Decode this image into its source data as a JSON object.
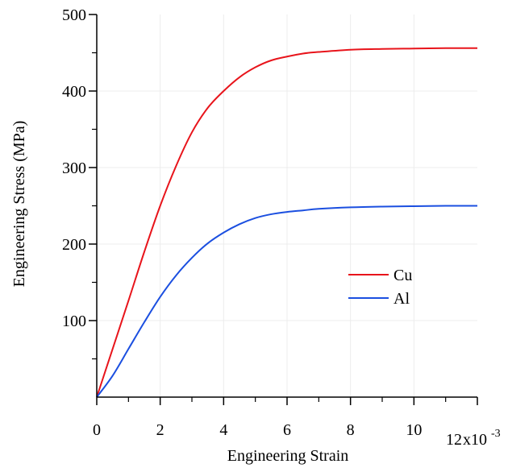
{
  "chart_data": {
    "type": "line",
    "xlabel": "Engineering Strain",
    "ylabel": "Engineering Stress (MPa)",
    "x_scale_note": "x10",
    "x_scale_exp": "-3",
    "xlim": [
      0,
      12
    ],
    "ylim": [
      0,
      500
    ],
    "x_ticks": [
      0,
      2,
      4,
      6,
      8,
      10,
      12
    ],
    "x_tick_labels": [
      "0",
      "2",
      "4",
      "6",
      "8",
      "10",
      "12"
    ],
    "y_ticks": [
      100,
      200,
      300,
      400,
      500
    ],
    "y_tick_labels": [
      "100",
      "200",
      "300",
      "400",
      "500"
    ],
    "grid": true,
    "legend_position": "right-middle",
    "series": [
      {
        "name": "Cu",
        "color": "#e8141b",
        "x": [
          0,
          0.5,
          1,
          1.5,
          2,
          2.5,
          3,
          3.5,
          4,
          4.5,
          5,
          5.5,
          6,
          6.5,
          7,
          8,
          9,
          10,
          11,
          12
        ],
        "y": [
          0,
          63,
          126,
          190,
          250,
          302,
          346,
          378,
          400,
          418,
          431,
          440,
          445,
          449,
          451,
          454,
          455,
          455.5,
          456,
          456
        ]
      },
      {
        "name": "Al",
        "color": "#1b4fe0",
        "x": [
          0,
          0.5,
          1,
          1.5,
          2,
          2.5,
          3,
          3.5,
          4,
          4.5,
          5,
          5.5,
          6,
          6.5,
          7,
          8,
          9,
          10,
          11,
          12
        ],
        "y": [
          0,
          28,
          63,
          98,
          131,
          159,
          182,
          201,
          215,
          226,
          234,
          239,
          242,
          244,
          246,
          248,
          249,
          249.5,
          250,
          250
        ]
      }
    ]
  }
}
